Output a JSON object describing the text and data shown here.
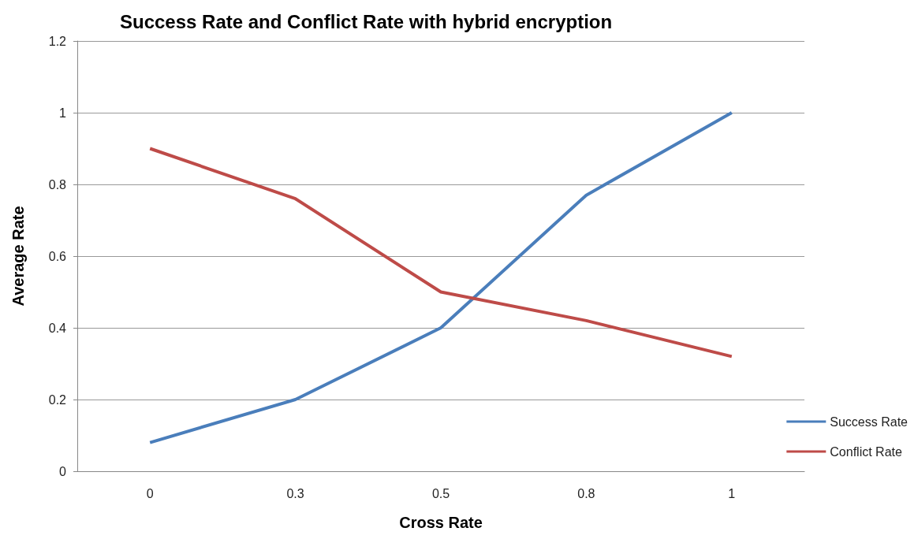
{
  "chart_data": {
    "type": "line",
    "title": "Success Rate and Conflict Rate with hybrid encryption",
    "xlabel": "Cross Rate",
    "ylabel": "Average Rate",
    "categories": [
      "0",
      "0.3",
      "0.5",
      "0.8",
      "1"
    ],
    "series": [
      {
        "name": "Success Rate",
        "color": "#4a7ebb",
        "values": [
          0.08,
          0.2,
          0.4,
          0.77,
          1.0
        ]
      },
      {
        "name": "Conflict Rate",
        "color": "#be4b48",
        "values": [
          0.9,
          0.76,
          0.5,
          0.42,
          0.32
        ]
      }
    ],
    "ylim": [
      0,
      1.2
    ],
    "yticks": [
      0,
      0.2,
      0.4,
      0.6,
      0.8,
      1,
      1.2
    ],
    "grid": "y",
    "legend": "bottom right",
    "marker": "none",
    "line_style": "solid"
  }
}
